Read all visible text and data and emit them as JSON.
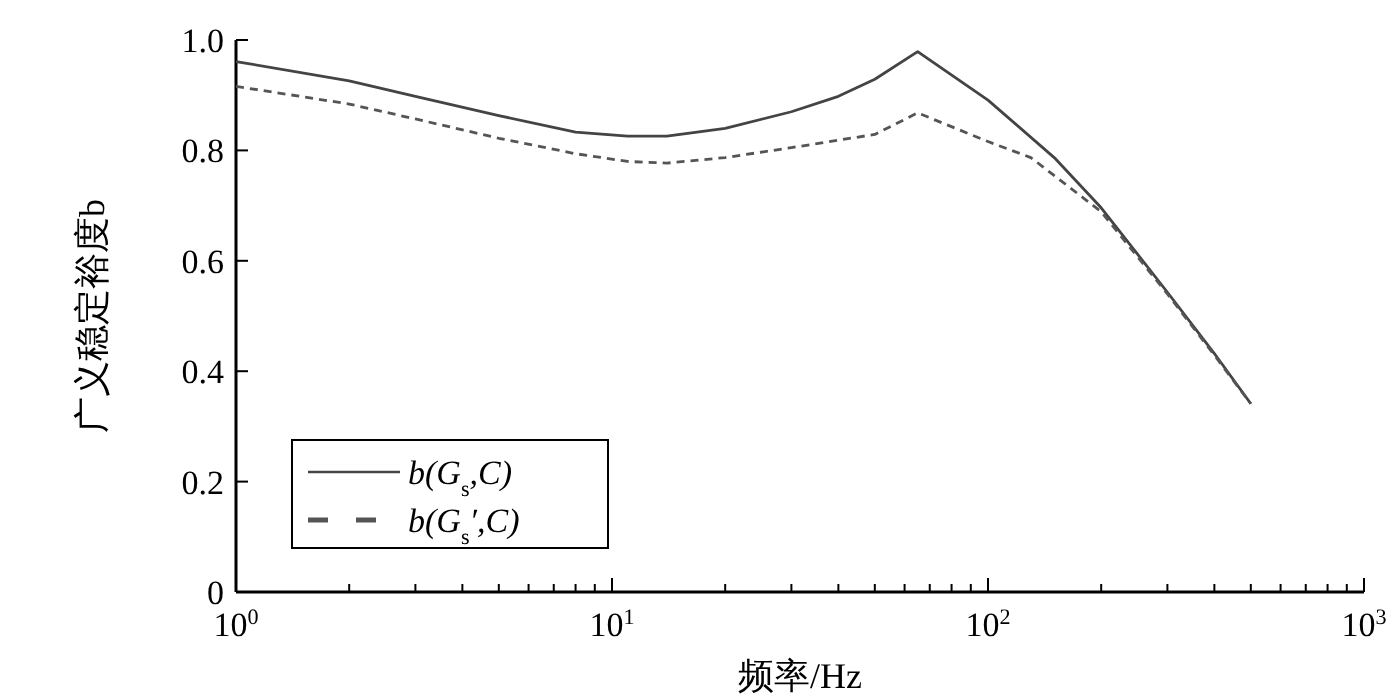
{
  "chart_data": {
    "type": "line",
    "xlabel": "频率/Hz",
    "ylabel": "广义稳定裕度b",
    "log": "x",
    "xlim": [
      1,
      1000
    ],
    "xticks": [
      {
        "value": 1,
        "label": "10$^{0}$"
      },
      {
        "value": 10,
        "label": "10$^{1}$"
      },
      {
        "value": 100,
        "label": "10$^{2}$"
      },
      {
        "value": 1000,
        "label": "10$^{3}$"
      }
    ],
    "ylim": [
      0,
      1
    ],
    "yticks": [
      0,
      0.2,
      0.4,
      0.6,
      0.8,
      {
        "value": 1,
        "label": "1.0"
      }
    ],
    "legend": "bottom left",
    "grid": false,
    "series": [
      {
        "name": "b(G$_{s}$,C)",
        "color": "#444444",
        "line_style": "solid",
        "x": [
          1,
          2,
          3,
          5,
          8,
          11,
          14,
          20,
          30,
          40,
          50,
          65,
          100,
          150,
          200,
          300,
          400,
          500
        ],
        "values": [
          0.961,
          0.926,
          0.898,
          0.863,
          0.833,
          0.826,
          0.826,
          0.84,
          0.87,
          0.898,
          0.929,
          0.979,
          0.891,
          0.787,
          0.696,
          0.543,
          0.432,
          0.341
        ]
      },
      {
        "name": "b(G$_{s}$′,C)",
        "color": "#555555",
        "line_style": "dashed",
        "x": [
          1,
          2,
          3,
          5,
          8,
          11,
          14,
          20,
          30,
          50,
          65,
          100,
          130,
          200,
          300,
          400,
          500
        ],
        "values": [
          0.916,
          0.884,
          0.857,
          0.822,
          0.794,
          0.78,
          0.777,
          0.787,
          0.805,
          0.829,
          0.868,
          0.816,
          0.787,
          0.689,
          0.54,
          0.429,
          0.341
        ]
      }
    ]
  }
}
